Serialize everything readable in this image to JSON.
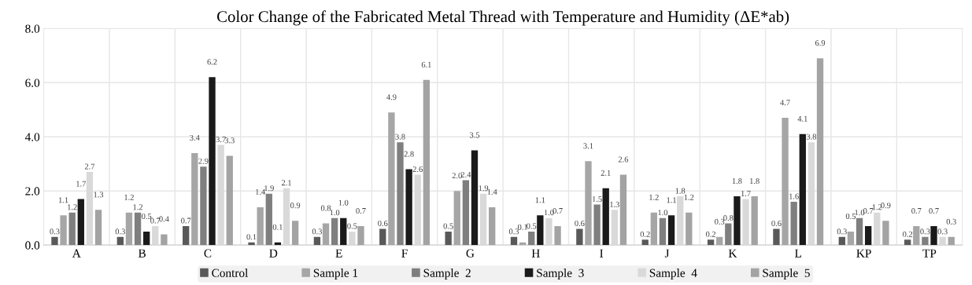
{
  "chart_data": {
    "type": "bar",
    "title": "Color Change of the Fabricated Metal Thread with Temperature and Humidity (ΔE*ab)",
    "categories": [
      "A",
      "B",
      "C",
      "D",
      "E",
      "F",
      "G",
      "H",
      "I",
      "J",
      "K",
      "L",
      "KP",
      "TP"
    ],
    "series": [
      {
        "name": "Control",
        "color": "#595959",
        "values": [
          0.3,
          0.3,
          0.7,
          0.1,
          0.3,
          0.6,
          0.5,
          0.3,
          0.6,
          0.2,
          0.2,
          0.6,
          0.3,
          0.2
        ],
        "value_labels": [
          "0.3",
          "0.3",
          "0.7",
          "0.1",
          "0.3",
          "0.6",
          "0.5",
          "0.3",
          "0.6",
          "0.2",
          "0.2",
          "0.6",
          "0.3",
          "0.2"
        ]
      },
      {
        "name": "Sample 1",
        "color": "#a6a6a6",
        "values": [
          1.1,
          1.2,
          3.4,
          1.4,
          0.8,
          4.9,
          2.0,
          0.1,
          3.1,
          1.2,
          0.3,
          4.7,
          0.5,
          0.7
        ],
        "value_labels": [
          "1.1",
          "1.2",
          "3.4",
          "1.4",
          "0.8",
          "4.9",
          "2.0",
          "0.1",
          "3.1",
          "1.2",
          "0.3",
          "4.7",
          "0.5",
          "0.7"
        ]
      },
      {
        "name": "Sample  2",
        "color": "#7f7f7f",
        "values": [
          1.2,
          1.2,
          2.9,
          1.9,
          1.0,
          3.8,
          2.4,
          0.5,
          1.5,
          1.0,
          0.8,
          1.6,
          1.0,
          0.3
        ],
        "value_labels": [
          "1.2",
          "1.2",
          "2.9",
          "1.9",
          "1.0",
          "3.8",
          "2.4",
          "0.5",
          "1.5",
          "1.0",
          "0.8",
          "1.6",
          "1.0",
          "0.3"
        ]
      },
      {
        "name": "Sample  3",
        "color": "#1a1a1a",
        "values": [
          1.7,
          0.5,
          6.2,
          0.1,
          1.0,
          2.8,
          3.5,
          1.1,
          2.1,
          1.1,
          1.8,
          4.1,
          0.7,
          0.7
        ],
        "value_labels": [
          "1.7",
          "0.5",
          "6.2",
          "0.1",
          "1.0",
          "2.8",
          "3.5",
          "1.1",
          "2.1",
          "1.1",
          "1.8",
          "4.1",
          "0.7",
          "0.7"
        ]
      },
      {
        "name": "Sample  4",
        "color": "#d9d9d9",
        "values": [
          2.7,
          0.7,
          3.7,
          2.1,
          0.5,
          2.6,
          1.9,
          1.0,
          1.3,
          1.8,
          1.7,
          3.8,
          1.2,
          0.3
        ],
        "value_labels": [
          "2.7",
          "0.7",
          "3.7",
          "2.1",
          "0.5",
          "2.6",
          "1.9",
          "1.0",
          "1.3",
          "1.8",
          "1.7",
          "3.8",
          "1.2",
          "0.3"
        ]
      },
      {
        "name": "Sample  5",
        "color": "#a3a3a3",
        "values": [
          1.3,
          0.4,
          3.3,
          0.9,
          0.7,
          6.1,
          1.4,
          0.7,
          2.6,
          1.2,
          1.8,
          6.9,
          0.9,
          0.3
        ],
        "value_labels": [
          "1.3",
          "0.4",
          "3.3",
          "0.9",
          "0.7",
          "6.1",
          "1.4",
          "0.7",
          "2.6",
          "1.2",
          "1.8",
          "6.9",
          "0.9",
          "0.3"
        ]
      }
    ],
    "ylim": [
      0,
      8
    ],
    "yticks": [
      {
        "value": 0,
        "label": "0.0"
      },
      {
        "value": 2,
        "label": "2.0"
      },
      {
        "value": 4,
        "label": "4.0"
      },
      {
        "value": 6,
        "label": "6.0"
      },
      {
        "value": 8,
        "label": "8.0"
      }
    ],
    "grid": true,
    "legend": "bottom"
  }
}
